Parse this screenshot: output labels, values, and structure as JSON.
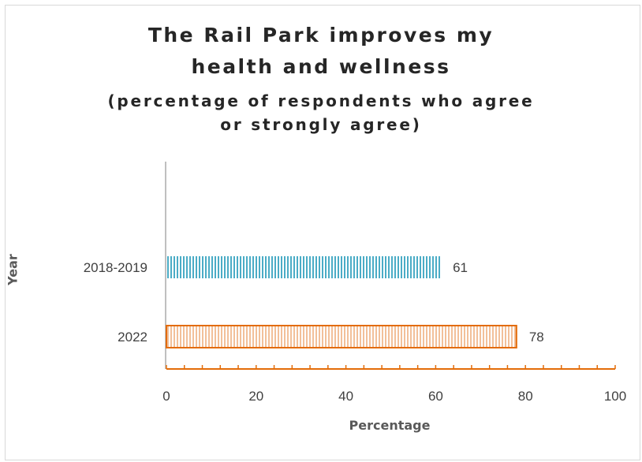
{
  "chart_data": {
    "type": "bar",
    "orientation": "horizontal",
    "title": "The Rail Park improves my health and wellness",
    "title_lines": [
      "The Rail Park improves my",
      "health and wellness"
    ],
    "subtitle": "(percentage of respondents who agree or strongly agree)",
    "subtitle_lines": [
      "(percentage of respondents who agree",
      "or strongly agree)"
    ],
    "xlabel": "Percentage",
    "ylabel": "Year",
    "categories": [
      "2018-2019",
      "2022"
    ],
    "values": [
      61,
      78
    ],
    "data_labels": [
      "61",
      "78"
    ],
    "bar_colors": [
      "#4bacc6",
      "#e36c09"
    ],
    "xlim": [
      0,
      100
    ],
    "x_ticks": [
      0,
      20,
      40,
      60,
      80,
      100
    ],
    "x_tick_labels": [
      "0",
      "20",
      "40",
      "60",
      "80",
      "100"
    ],
    "grid": false,
    "legend": "none",
    "axis_color": "#e36c09"
  }
}
